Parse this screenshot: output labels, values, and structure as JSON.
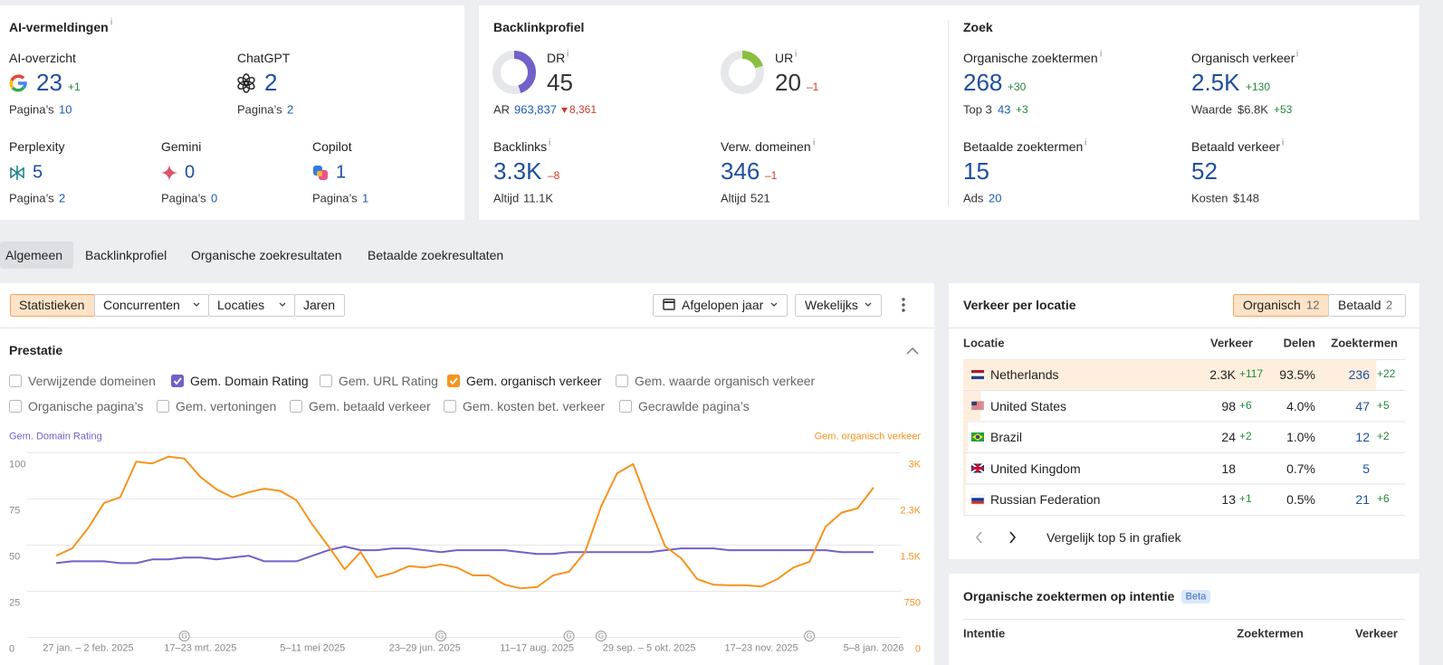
{
  "ai": {
    "title": "AI-vermeldingen",
    "info": "i",
    "items": [
      {
        "name": "AI-overzicht",
        "value": 23,
        "delta": "+1",
        "pages_label": "Pagina’s",
        "pages": 10
      },
      {
        "name": "ChatGPT",
        "value": 2,
        "pages_label": "Pagina’s",
        "pages": 2
      },
      {
        "name": "Perplexity",
        "value": 5,
        "pages_label": "Pagina’s",
        "pages": 2
      },
      {
        "name": "Gemini",
        "value": 0,
        "pages_label": "Pagina’s",
        "pages": 0
      },
      {
        "name": "Copilot",
        "value": 1,
        "pages_label": "Pagina’s",
        "pages": 1
      }
    ]
  },
  "backlinks": {
    "title": "Backlinkprofiel",
    "info": "i",
    "dr": {
      "label": "DR",
      "value": 45
    },
    "ar": {
      "label": "AR",
      "value": "963,837",
      "delta": "8,361"
    },
    "ur": {
      "label": "UR",
      "value": 20,
      "delta": "–1"
    },
    "items": [
      {
        "label": "Backlinks",
        "value": "3.3K",
        "delta": "–8",
        "sub_label": "Altijd",
        "sub_value": "11.1K"
      },
      {
        "label": "Verw. domeinen",
        "value": 346,
        "delta": "–1",
        "sub_label": "Altijd",
        "sub_value": 521
      }
    ]
  },
  "search": {
    "title": "Zoek",
    "info": "i",
    "items": [
      {
        "label": "Organische zoektermen",
        "value": 268,
        "delta": "+30",
        "sub_label": "Top 3",
        "sub_value": 43,
        "sub_delta": "+3"
      },
      {
        "label": "Organisch verkeer",
        "value": "2.5K",
        "delta": "+130",
        "sub_label": "Waarde",
        "sub_value": "$6.8K",
        "sub_delta": "+53"
      },
      {
        "label": "Betaalde zoektermen",
        "value": 15,
        "sub_label": "Ads",
        "sub_value": 20
      },
      {
        "label": "Betaald verkeer",
        "value": 52,
        "sub_label": "Kosten",
        "sub_value": "$148"
      }
    ]
  },
  "tabs": [
    "Algemeen",
    "Backlinkprofiel",
    "Organische zoekresultaten",
    "Betaalde zoekresultaten"
  ],
  "toolbar": {
    "buttons": [
      "Statistieken",
      "Concurrenten",
      "Locaties",
      "Jaren"
    ],
    "period": "Afgelopen jaar",
    "interval": "Wekelijks"
  },
  "performance": {
    "title": "Prestatie",
    "metrics": [
      {
        "label": "Verwijzende domeinen",
        "checked": false
      },
      {
        "label": "Gem. Domain Rating",
        "checked": true
      },
      {
        "label": "Gem. URL Rating",
        "checked": false
      },
      {
        "label": "Gem. organisch verkeer",
        "checked": true
      },
      {
        "label": "Gem. waarde organisch verkeer",
        "checked": false
      },
      {
        "label": "Organische pagina’s",
        "checked": false
      },
      {
        "label": "Gem. vertoningen",
        "checked": false
      },
      {
        "label": "Gem. betaald verkeer",
        "checked": false
      },
      {
        "label": "Gem. kosten bet. verkeer",
        "checked": false
      },
      {
        "label": "Gecrawlde pagina’s",
        "checked": false
      }
    ]
  },
  "chart": {
    "type": "line",
    "categories": [
      null,
      null,
      "27 jan. – 2 feb. 2025",
      null,
      null,
      null,
      null,
      null,
      null,
      "17–23 mrt. 2025",
      null,
      null,
      null,
      null,
      null,
      null,
      "5–11 mei 2025",
      null,
      null,
      null,
      null,
      null,
      null,
      "23–29 jun. 2025",
      null,
      null,
      null,
      null,
      null,
      null,
      "11–17 aug. 2025",
      null,
      null,
      null,
      null,
      null,
      null,
      "29 sep. – 5 okt. 2025",
      null,
      null,
      null,
      null,
      null,
      null,
      "17–23 nov. 2025",
      null,
      null,
      null,
      null,
      null,
      null,
      "5–8 jan. 2026"
    ],
    "series": [
      {
        "name": "Gem. Domain Rating",
        "color": "#7360c8",
        "values": [
          40,
          41,
          41,
          41,
          40,
          40,
          42,
          42,
          43,
          43,
          42,
          43,
          44,
          41,
          41,
          41,
          44,
          47,
          49,
          47,
          47,
          48,
          48,
          47,
          46,
          47,
          47,
          47,
          47,
          46,
          45,
          45,
          46,
          46,
          46,
          46,
          46,
          46,
          47,
          48,
          48,
          48,
          47,
          47,
          47,
          47,
          47,
          47,
          47,
          46,
          46,
          46
        ]
      },
      {
        "name": "Gem. organisch verkeer",
        "color": "#f7931e",
        "axis": "y2",
        "values": [
          1320,
          1440,
          1770,
          2180,
          2270,
          2850,
          2820,
          2930,
          2900,
          2600,
          2400,
          2270,
          2350,
          2410,
          2370,
          2220,
          1820,
          1470,
          1100,
          1380,
          970,
          1040,
          1150,
          1130,
          1180,
          1130,
          1000,
          1000,
          850,
          790,
          810,
          1000,
          1060,
          1380,
          2120,
          2660,
          2810,
          2120,
          1470,
          1280,
          940,
          850,
          840,
          840,
          820,
          940,
          1130,
          1220,
          1790,
          2020,
          2090,
          2430
        ]
      }
    ],
    "ylim": [
      0,
      100
    ],
    "yticks": [
      0,
      25,
      50,
      75,
      100
    ],
    "y2lim": [
      0,
      3000
    ],
    "y2ticks": [
      0,
      750,
      {
        "value": 1500,
        "label": "1.5K"
      },
      {
        "value": 2250,
        "label": "2.3K"
      },
      {
        "value": 3000,
        "label": "3K"
      }
    ],
    "grid": true,
    "annotations": {
      "label": "G",
      "at": [
        8,
        24,
        32,
        34,
        47
      ]
    }
  },
  "locations": {
    "title": "Verkeer per locatie",
    "toggle": [
      {
        "label": "Organisch",
        "count": 12
      },
      {
        "label": "Betaald",
        "count": 2
      }
    ],
    "columns": [
      "Locatie",
      "Verkeer",
      "Delen",
      "Zoektermen"
    ],
    "rows": [
      {
        "country": "Netherlands",
        "traffic": "2.3K",
        "traffic_delta": "+117",
        "share": 93.5,
        "share_label": "93.5%",
        "keywords": 236,
        "keywords_delta": "+22"
      },
      {
        "country": "United States",
        "traffic": 98,
        "traffic_delta": "+6",
        "share": 4.0,
        "share_label": "4.0%",
        "keywords": 47,
        "keywords_delta": "+5"
      },
      {
        "country": "Brazil",
        "traffic": 24,
        "traffic_delta": "+2",
        "share": 1.0,
        "share_label": "1.0%",
        "keywords": 12,
        "keywords_delta": "+2"
      },
      {
        "country": "United Kingdom",
        "traffic": 18,
        "share": 0.7,
        "share_label": "0.7%",
        "keywords": 5
      },
      {
        "country": "Russian Federation",
        "traffic": 13,
        "traffic_delta": "+1",
        "share": 0.5,
        "share_label": "0.5%",
        "keywords": 21,
        "keywords_delta": "+6"
      }
    ],
    "compare": "Vergelijk top 5 in grafiek"
  },
  "intent": {
    "title": "Organische zoektermen op intentie",
    "badge": "Beta",
    "columns": [
      "Intentie",
      "Zoektermen",
      "Verkeer"
    ]
  }
}
